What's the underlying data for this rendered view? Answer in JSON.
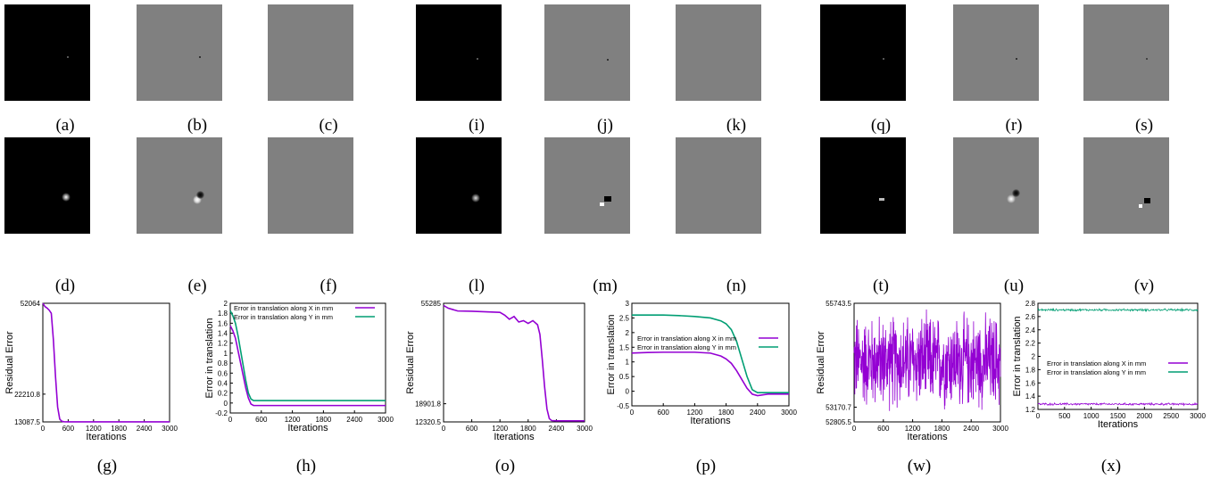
{
  "captions": {
    "a": "(a)",
    "b": "(b)",
    "c": "(c)",
    "d": "(d)",
    "e": "(e)",
    "f": "(f)",
    "g": "(g)",
    "h": "(h)",
    "i": "(i)",
    "j": "(j)",
    "k": "(k)",
    "l": "(l)",
    "m": "(m)",
    "n": "(n)",
    "o": "(o)",
    "p": "(p)",
    "q": "(q)",
    "r": "(r)",
    "s": "(s)",
    "t": "(t)",
    "u": "(u)",
    "v": "(v)",
    "w": "(w)",
    "x": "(x)"
  },
  "colors": {
    "purple": "#9400d3",
    "green": "#009e73",
    "dark_tile": "#000000",
    "gray_tile": "#808080"
  },
  "chart_data": [
    {
      "id": "g",
      "type": "line",
      "xlabel": "Iterations",
      "ylabel": "Residual Error",
      "xlim": [
        0,
        3000
      ],
      "ylim": [
        13087.5,
        52064
      ],
      "xticks": [
        "0",
        "600",
        "1200",
        "1800",
        "2400",
        "3000"
      ],
      "yticks": [
        "52064",
        "22210.8",
        "13087.5"
      ],
      "series": [
        {
          "color": "#9400d3",
          "x": [
            0,
            50,
            100,
            150,
            200,
            250,
            300,
            350,
            400,
            450,
            500,
            600,
            1200,
            1800,
            2400,
            3000
          ],
          "y": [
            52064,
            51000,
            50500,
            49800,
            48800,
            40000,
            28000,
            18000,
            14000,
            13300,
            13150,
            13100,
            13100,
            13100,
            13100,
            13100
          ]
        }
      ]
    },
    {
      "id": "h",
      "type": "line",
      "xlabel": "Iterations",
      "ylabel": "Error in translation",
      "xlim": [
        0,
        3000
      ],
      "ylim": [
        -0.2,
        2
      ],
      "xticks": [
        "0",
        "600",
        "1200",
        "1800",
        "2400",
        "3000"
      ],
      "yticks": [
        "2",
        "1.8",
        "1.6",
        "1.4",
        "1.2",
        "1",
        "0.8",
        "0.6",
        "0.4",
        "0.2",
        "0",
        "-0.2"
      ],
      "legend": "top-right",
      "series": [
        {
          "name": "Error in translation along X in mm",
          "color": "#9400d3",
          "x": [
            0,
            50,
            100,
            150,
            200,
            250,
            300,
            350,
            400,
            450,
            500,
            600,
            1200,
            1800,
            2400,
            3000
          ],
          "y": [
            1.55,
            1.45,
            1.3,
            1.05,
            0.8,
            0.55,
            0.3,
            0.1,
            -0.02,
            -0.05,
            -0.05,
            -0.05,
            -0.05,
            -0.05,
            -0.05,
            -0.05
          ]
        },
        {
          "name": "Error in translation along Y in mm",
          "color": "#009e73",
          "x": [
            0,
            50,
            100,
            150,
            200,
            250,
            300,
            350,
            400,
            450,
            500,
            600,
            1200,
            1800,
            2400,
            3000
          ],
          "y": [
            1.85,
            1.75,
            1.6,
            1.35,
            1.05,
            0.75,
            0.45,
            0.2,
            0.08,
            0.05,
            0.05,
            0.05,
            0.05,
            0.05,
            0.05,
            0.05
          ]
        }
      ]
    },
    {
      "id": "o",
      "type": "line",
      "xlabel": "Iterations",
      "ylabel": "Residual Error",
      "xlim": [
        0,
        3000
      ],
      "ylim": [
        12320.5,
        55285
      ],
      "xticks": [
        "0",
        "600",
        "1200",
        "1800",
        "2400",
        "3000"
      ],
      "yticks": [
        "55285",
        "18901.8",
        "12320.5"
      ],
      "series": [
        {
          "color": "#9400d3",
          "x": [
            0,
            100,
            200,
            300,
            600,
            900,
            1200,
            1300,
            1400,
            1500,
            1600,
            1700,
            1800,
            1900,
            2000,
            2050,
            2100,
            2150,
            2200,
            2250,
            2300,
            2400,
            3000
          ],
          "y": [
            54500,
            53500,
            53000,
            52500,
            52400,
            52200,
            52000,
            51000,
            49500,
            50500,
            48500,
            49000,
            48000,
            49000,
            47500,
            44000,
            35000,
            25000,
            17000,
            13500,
            12800,
            12700,
            12700
          ]
        }
      ]
    },
    {
      "id": "p",
      "type": "line",
      "xlabel": "Iterations",
      "ylabel": "Error in translation",
      "xlim": [
        0,
        3000
      ],
      "ylim": [
        -0.5,
        3
      ],
      "xticks": [
        "0",
        "600",
        "1200",
        "1800",
        "2400",
        "3000"
      ],
      "yticks": [
        "3",
        "2.5",
        "2",
        "1.5",
        "1",
        "0.5",
        "0",
        "-0.5"
      ],
      "legend": "center",
      "series": [
        {
          "name": "Error in translation along X in mm",
          "color": "#9400d3",
          "x": [
            0,
            300,
            600,
            900,
            1200,
            1500,
            1700,
            1800,
            1900,
            2000,
            2100,
            2200,
            2300,
            2400,
            2600,
            3000
          ],
          "y": [
            1.3,
            1.32,
            1.33,
            1.33,
            1.33,
            1.3,
            1.2,
            1.1,
            0.95,
            0.7,
            0.4,
            0.1,
            -0.1,
            -0.15,
            -0.1,
            -0.1
          ]
        },
        {
          "name": "Error in translation along Y in mm",
          "color": "#009e73",
          "x": [
            0,
            300,
            600,
            900,
            1200,
            1500,
            1700,
            1800,
            1900,
            2000,
            2100,
            2200,
            2300,
            2400,
            2600,
            3000
          ],
          "y": [
            2.6,
            2.6,
            2.6,
            2.58,
            2.55,
            2.5,
            2.4,
            2.3,
            2.1,
            1.7,
            1.1,
            0.5,
            0.05,
            -0.05,
            -0.05,
            -0.05
          ]
        }
      ]
    },
    {
      "id": "w",
      "type": "line",
      "xlabel": "Iterations",
      "ylabel": "Residual Error",
      "xlim": [
        0,
        3000
      ],
      "ylim": [
        52805.5,
        55743.5
      ],
      "xticks": [
        "0",
        "600",
        "1200",
        "1800",
        "2400",
        "3000"
      ],
      "yticks": [
        "55743.5",
        "53170.7",
        "52805.5"
      ],
      "series": [
        {
          "color": "#9400d3",
          "noise": {
            "center": 54300,
            "amplitude": 1350,
            "count": 600
          }
        }
      ]
    },
    {
      "id": "x",
      "type": "line",
      "xlabel": "Iterations",
      "ylabel": "Error in translation",
      "xlim": [
        0,
        3000
      ],
      "ylim": [
        1.2,
        2.8
      ],
      "xticks": [
        "0",
        "500",
        "1000",
        "1500",
        "2000",
        "2500",
        "3000"
      ],
      "yticks": [
        "2.8",
        "2.6",
        "2.4",
        "2.2",
        "2",
        "1.8",
        "1.6",
        "1.4",
        "1.2"
      ],
      "legend": "center-left",
      "series": [
        {
          "name": "Error in translation along X in mm",
          "color": "#9400d3",
          "noise": {
            "center": 1.28,
            "amplitude": 0.02,
            "count": 300
          }
        },
        {
          "name": "Error in translation along Y in mm",
          "color": "#009e73",
          "noise": {
            "center": 2.7,
            "amplitude": 0.02,
            "count": 300
          }
        }
      ]
    }
  ]
}
